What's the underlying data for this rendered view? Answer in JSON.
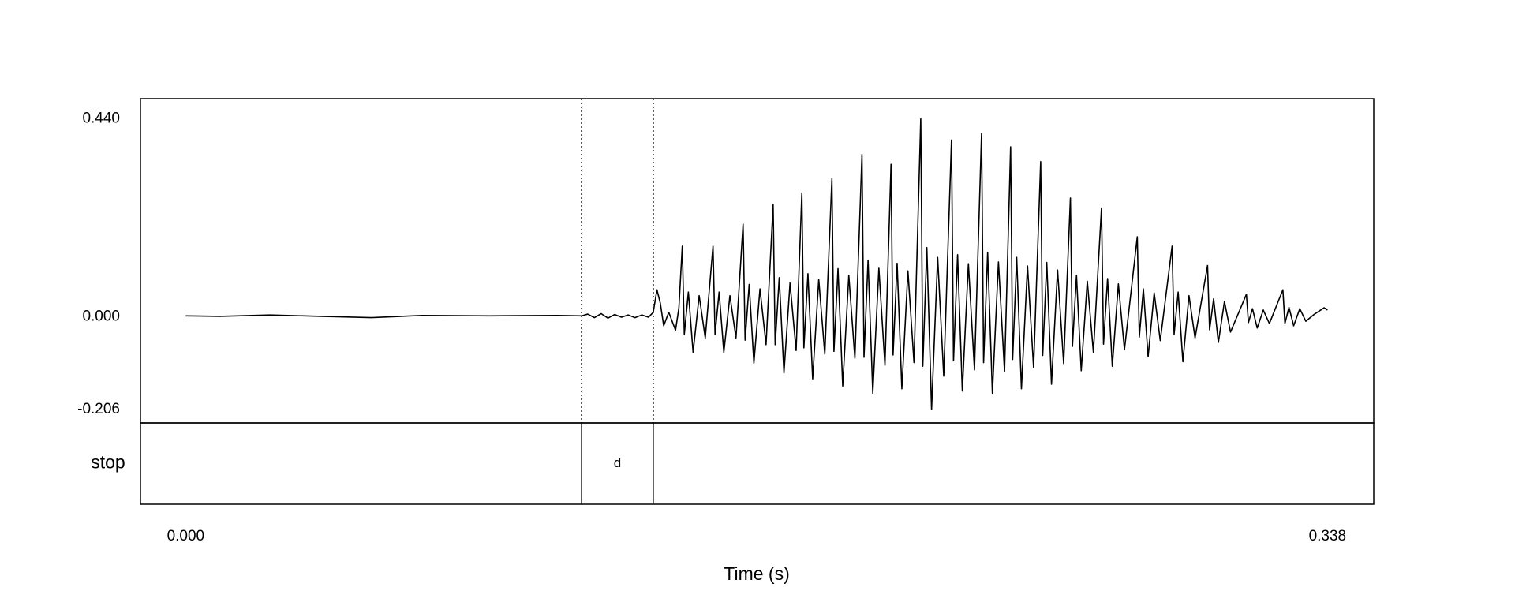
{
  "chart_data": {
    "type": "waveform",
    "x_label": "Time (s)",
    "xlim": [
      -0.0134,
      0.3517
    ],
    "ylim": [
      -0.236,
      0.485
    ],
    "xticks": [
      {
        "value": 0,
        "label": "0.000"
      },
      {
        "value": 0.338,
        "label": "0.338"
      }
    ],
    "yticks": [
      {
        "value": 0.44,
        "label": "0.440"
      },
      {
        "value": 0,
        "label": "0.000"
      },
      {
        "value": -0.206,
        "label": "-0.206"
      }
    ],
    "color": "#000000",
    "x": [
      0,
      0.01,
      0.025,
      0.04,
      0.055,
      0.07,
      0.09,
      0.11,
      0.1172,
      0.119,
      0.121,
      0.123,
      0.125,
      0.127,
      0.129,
      0.131,
      0.133,
      0.135,
      0.137,
      0.1384,
      0.1395,
      0.1405,
      0.1415,
      0.143,
      0.145,
      0.146,
      0.147,
      0.1476,
      0.1488,
      0.1502,
      0.152,
      0.1538,
      0.1561,
      0.1567,
      0.1579,
      0.1593,
      0.1611,
      0.1629,
      0.165,
      0.1656,
      0.1668,
      0.1682,
      0.17,
      0.1718,
      0.1739,
      0.1745,
      0.1757,
      0.1771,
      0.1789,
      0.1807,
      0.1824,
      0.183,
      0.1842,
      0.1856,
      0.1874,
      0.1892,
      0.1913,
      0.1919,
      0.1931,
      0.1945,
      0.1963,
      0.1981,
      0.2002,
      0.2008,
      0.202,
      0.2034,
      0.2052,
      0.207,
      0.2088,
      0.2094,
      0.2106,
      0.212,
      0.2138,
      0.2156,
      0.2176,
      0.2182,
      0.2194,
      0.2208,
      0.2226,
      0.2244,
      0.2267,
      0.2273,
      0.2285,
      0.2299,
      0.2317,
      0.2335,
      0.2356,
      0.2362,
      0.2374,
      0.2388,
      0.2406,
      0.2424,
      0.2442,
      0.2448,
      0.246,
      0.2474,
      0.2492,
      0.251,
      0.2531,
      0.2537,
      0.2549,
      0.2563,
      0.2581,
      0.2599,
      0.2619,
      0.2625,
      0.2637,
      0.2651,
      0.2669,
      0.2687,
      0.2711,
      0.2717,
      0.2729,
      0.2743,
      0.2761,
      0.2779,
      0.2817,
      0.2823,
      0.2835,
      0.2849,
      0.2867,
      0.2885,
      0.292,
      0.2926,
      0.2938,
      0.2952,
      0.297,
      0.2988,
      0.3025,
      0.3031,
      0.3043,
      0.3057,
      0.3075,
      0.3093,
      0.314,
      0.3146,
      0.3158,
      0.3172,
      0.319,
      0.3208,
      0.3248,
      0.3254,
      0.3266,
      0.328,
      0.3298,
      0.3316,
      0.334,
      0.337,
      0.338
    ],
    "values": [
      0.002,
      0.001,
      0.004,
      0.001,
      -0.002,
      0.003,
      0.002,
      0.003,
      0.002,
      0.006,
      -0.002,
      0.007,
      -0.003,
      0.005,
      -0.001,
      0.004,
      -0.002,
      0.004,
      -0.001,
      0.01,
      0.06,
      0.03,
      -0.02,
      0.01,
      -0.03,
      0.02,
      0.157,
      -0.039,
      0.055,
      -0.079,
      0.047,
      -0.047,
      0.157,
      -0.039,
      0.055,
      -0.079,
      0.047,
      -0.047,
      0.206,
      -0.052,
      0.072,
      -0.103,
      0.062,
      -0.062,
      0.249,
      -0.062,
      0.087,
      -0.125,
      0.075,
      -0.075,
      0.275,
      -0.069,
      0.096,
      -0.138,
      0.083,
      -0.083,
      0.307,
      -0.077,
      0.107,
      -0.154,
      0.092,
      -0.092,
      0.361,
      -0.09,
      0.126,
      -0.17,
      0.108,
      -0.108,
      0.339,
      -0.085,
      0.119,
      -0.16,
      0.102,
      -0.102,
      0.44,
      -0.11,
      0.154,
      -0.206,
      0.132,
      -0.132,
      0.393,
      -0.098,
      0.138,
      -0.165,
      0.118,
      -0.118,
      0.408,
      -0.102,
      0.143,
      -0.17,
      0.122,
      -0.122,
      0.378,
      -0.095,
      0.132,
      -0.16,
      0.113,
      -0.113,
      0.345,
      -0.086,
      0.121,
      -0.15,
      0.104,
      -0.104,
      0.264,
      -0.066,
      0.092,
      -0.12,
      0.079,
      -0.079,
      0.242,
      -0.061,
      0.085,
      -0.11,
      0.073,
      -0.073,
      0.178,
      -0.045,
      0.062,
      -0.089,
      0.053,
      -0.053,
      0.157,
      -0.039,
      0.055,
      -0.1,
      0.047,
      -0.047,
      0.114,
      -0.029,
      0.04,
      -0.057,
      0.034,
      -0.034,
      0.05,
      -0.013,
      0.018,
      -0.025,
      0.015,
      -0.015,
      0.06,
      -0.015,
      0.021,
      -0.02,
      0.018,
      -0.01,
      0.005,
      0.02,
      0.015
    ],
    "tiers": [
      {
        "name": "stop",
        "intervals": [
          {
            "start": 0.1172,
            "end": 0.1384,
            "label": "d"
          }
        ]
      }
    ]
  }
}
